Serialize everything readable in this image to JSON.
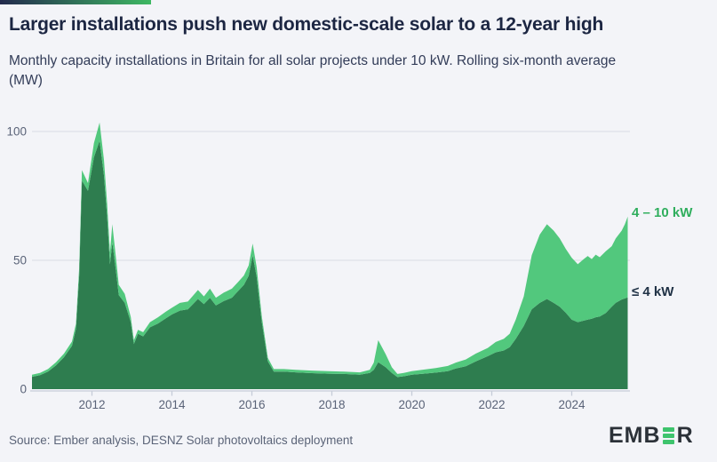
{
  "header": {
    "title": "Larger installations push new domestic-scale solar to a 12-year high",
    "subtitle": "Monthly capacity installations in Britain for all solar projects under 10 kW. Rolling six-month average (MW)"
  },
  "chart_data": {
    "type": "area",
    "stacked": true,
    "title": "Monthly capacity installations in Britain for all solar projects under 10 kW, rolling six-month average (MW)",
    "xlabel": "",
    "ylabel": "MW",
    "xlim": [
      2010.5,
      2025.4
    ],
    "ylim": [
      0,
      105
    ],
    "yticks": [
      0,
      50,
      100
    ],
    "xticks": [
      2012,
      2014,
      2016,
      2018,
      2020,
      2022,
      2024
    ],
    "grid": "horizontal",
    "legend_position": "right-of-lines",
    "x": [
      2010.5,
      2010.7,
      2010.9,
      2011.1,
      2011.3,
      2011.5,
      2011.6,
      2011.68,
      2011.75,
      2011.9,
      2012.05,
      2012.19,
      2012.3,
      2012.38,
      2012.45,
      2012.51,
      2012.6,
      2012.67,
      2012.82,
      2012.97,
      2013.05,
      2013.15,
      2013.28,
      2013.45,
      2013.65,
      2013.85,
      2014.0,
      2014.2,
      2014.4,
      2014.65,
      2014.8,
      2014.95,
      2015.1,
      2015.3,
      2015.5,
      2015.65,
      2015.8,
      2015.92,
      2016.02,
      2016.12,
      2016.25,
      2016.4,
      2016.55,
      2016.8,
      2017.1,
      2017.5,
      2017.9,
      2018.3,
      2018.7,
      2018.95,
      2019.05,
      2019.16,
      2019.35,
      2019.5,
      2019.64,
      2019.8,
      2020.0,
      2020.3,
      2020.6,
      2020.9,
      2021.1,
      2021.35,
      2021.6,
      2021.9,
      2022.1,
      2022.3,
      2022.45,
      2022.6,
      2022.8,
      2023.0,
      2023.2,
      2023.38,
      2023.55,
      2023.7,
      2023.85,
      2024.0,
      2024.15,
      2024.3,
      2024.4,
      2024.5,
      2024.6,
      2024.7,
      2024.85,
      2025.0,
      2025.1,
      2025.25,
      2025.33,
      2025.4
    ],
    "series": [
      {
        "name": "≤ 4 kW",
        "color": "#2e7d4f",
        "label_color": "#203246",
        "values": [
          4.8,
          5.4,
          6.8,
          9.2,
          12.4,
          16.8,
          23.5,
          44.0,
          81.0,
          77.0,
          90.0,
          96.5,
          83.0,
          67.0,
          48.5,
          57.0,
          46.0,
          36.5,
          33.5,
          26.0,
          17.5,
          21.5,
          20.5,
          24.0,
          25.5,
          27.5,
          29.0,
          30.5,
          31.0,
          35.0,
          33.0,
          35.5,
          32.5,
          34.2,
          35.5,
          38.0,
          40.5,
          44.0,
          52.0,
          43.5,
          26.0,
          10.8,
          6.8,
          6.8,
          6.5,
          6.2,
          6.0,
          5.9,
          5.6,
          6.3,
          7.5,
          10.5,
          8.5,
          6.3,
          4.7,
          5.0,
          5.6,
          6.0,
          6.4,
          7.0,
          8.0,
          8.9,
          10.8,
          12.8,
          14.3,
          15.0,
          16.3,
          19.5,
          24.5,
          31.0,
          33.5,
          35.0,
          33.5,
          32.0,
          29.7,
          27.0,
          26.0,
          26.6,
          27.0,
          27.3,
          27.9,
          28.2,
          29.5,
          32.0,
          33.5,
          34.8,
          35.2,
          35.6
        ]
      },
      {
        "name": "4 – 10 kW",
        "color": "#52c87d",
        "label_color": "#2fae5d",
        "values": [
          0.8,
          0.9,
          1.0,
          1.2,
          1.4,
          1.7,
          2.0,
          3.0,
          4.0,
          3.0,
          5.5,
          7.0,
          6.0,
          5.0,
          4.5,
          7.0,
          5.0,
          4.0,
          3.5,
          2.0,
          1.5,
          1.5,
          1.6,
          2.0,
          2.4,
          2.6,
          2.6,
          3.0,
          3.0,
          3.5,
          3.0,
          3.5,
          3.0,
          3.3,
          3.5,
          3.5,
          3.6,
          4.0,
          4.5,
          3.8,
          2.2,
          1.3,
          1.0,
          1.0,
          1.0,
          1.0,
          1.0,
          0.9,
          0.9,
          1.2,
          2.8,
          8.5,
          5.0,
          2.2,
          1.2,
          1.3,
          1.4,
          1.6,
          1.8,
          2.0,
          2.3,
          2.6,
          3.0,
          3.2,
          4.0,
          4.5,
          5.2,
          7.5,
          11.5,
          21.0,
          26.5,
          29.0,
          28.0,
          26.5,
          24.8,
          24.0,
          22.5,
          23.9,
          24.7,
          23.2,
          24.3,
          23.0,
          24.0,
          23.5,
          25.0,
          26.7,
          28.8,
          31.4
        ]
      }
    ]
  },
  "footer": {
    "source": "Source: Ember analysis, DESNZ Solar photovoltaics deployment",
    "logo": {
      "prefix": "EMB",
      "suffix": "R"
    }
  },
  "accent": {
    "background": "#f3f4f8",
    "topbar_from": "#232a4d",
    "topbar_to": "#3eb863",
    "title_color": "#1c2642",
    "subtitle_color": "#323c58",
    "axis_text_color": "#5a6378",
    "gridline_color": "#d8dce3",
    "axis_line_color": "#c6ccd8",
    "source_color": "#5b6478",
    "logo_text_color": "#2b3138",
    "logo_green": "#3ec46d"
  }
}
